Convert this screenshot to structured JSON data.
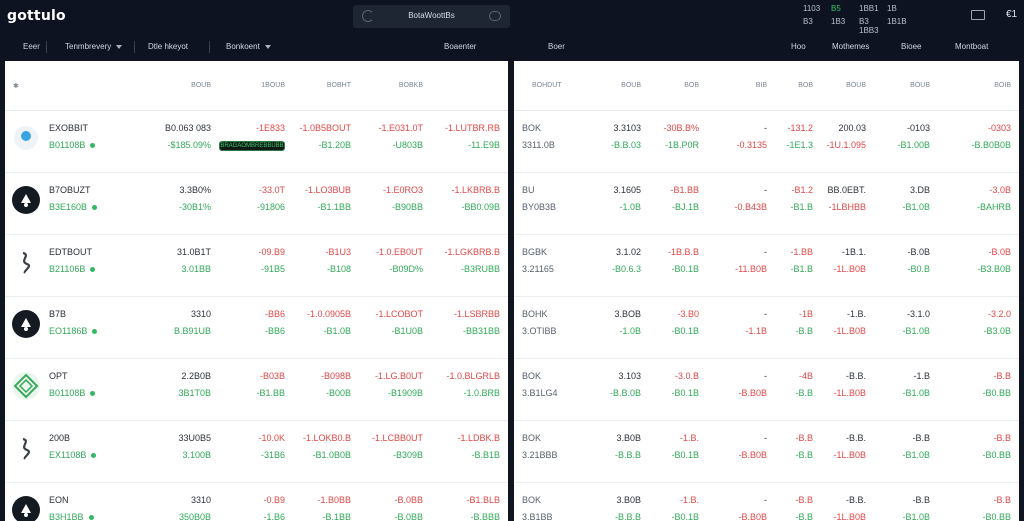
{
  "app": {
    "logo": "gottulo"
  },
  "search": {
    "label": "BotaWoottBs"
  },
  "top_stats": [
    [
      "1103",
      "B5",
      "1BB1",
      "1B",
      ""
    ],
    [
      "B3",
      "1B3",
      "B3 1BB3",
      "1B1B",
      ""
    ]
  ],
  "currency": "€1",
  "nav": {
    "left": [
      "Eeer",
      "Tenmbrevery",
      "Dtle hkeyot",
      "Bonkoent"
    ],
    "center": "Boaenter",
    "right_main": "Boer",
    "right": [
      "Hoo",
      "Mothemes",
      "Bioee",
      "Montboat"
    ]
  },
  "left_table": {
    "header_icon": "✱",
    "headers": [
      "BOUB",
      "1BOUB",
      "BOBHT",
      "BOBKB"
    ],
    "badge": "BRAGAOMBREBBUBB",
    "rows": [
      {
        "icon": "coin-light",
        "name": "EXOBBIT",
        "sub": "B01108B",
        "c1": [
          "B0.063 083",
          "-$185.09%"
        ],
        "c2": [
          "-1E833",
          ""
        ],
        "c3": [
          "-1.0B5BOUT",
          "-B1.20B"
        ],
        "c4": [
          "-1.E031.0T",
          "-U803B"
        ],
        "c5": [
          "-1.LUTBR.RB",
          "-11.E9B"
        ]
      },
      {
        "icon": "coin-dark",
        "name": "B7OBUZT",
        "sub": "B3E160B",
        "c1": [
          "3.3B0%",
          "-30B1%"
        ],
        "c2": [
          "-33.0T",
          "-91806"
        ],
        "c3": [
          "-1.LO3BUB",
          "-B1.1BB"
        ],
        "c4": [
          "-1.E0RO3",
          "-B90BB"
        ],
        "c5": [
          "-1.LKBRB.B",
          "-BB0.09B"
        ]
      },
      {
        "icon": "coin-snake",
        "name": "EDTBOUT",
        "sub": "B21106B",
        "c1": [
          "31.0B1T",
          "3.01BB"
        ],
        "c2": [
          "-09.B9",
          "-91B5"
        ],
        "c3": [
          "-B1U3",
          "-B108"
        ],
        "c4": [
          "-1.0.EB0UT",
          "-B09D%"
        ],
        "c5": [
          "-1.LGKBRB.B",
          "-B3RUBB"
        ]
      },
      {
        "icon": "coin-dark",
        "name": "B7B",
        "sub": "EO1186B",
        "c1": [
          "3310",
          "B.B91UB"
        ],
        "c2": [
          "-BB6",
          "-BB6"
        ],
        "c3": [
          "-1.0.0905B",
          "-B1.0B"
        ],
        "c4": [
          "-1.LCOBOT",
          "-B1U0B"
        ],
        "c5": [
          "-1.LSBRBB",
          "-BB31BB"
        ]
      },
      {
        "icon": "coin-green",
        "name": "OPT",
        "sub": "B01108B",
        "c1": [
          "2.2B0B",
          "3B1T0B"
        ],
        "c2": [
          "-B03B",
          "-B1.BB"
        ],
        "c3": [
          "-B098B",
          "-B00B"
        ],
        "c4": [
          "-1.LG.B0UT",
          "-B1909B"
        ],
        "c5": [
          "-1.0.BLGRLB",
          "-1.0.BRB"
        ]
      },
      {
        "icon": "coin-snake",
        "name": "200B",
        "sub": "EX1108B",
        "c1": [
          "33U0B5",
          "3.100B"
        ],
        "c2": [
          "-10.0K",
          "-31B6"
        ],
        "c3": [
          "-1.LOKB0.B",
          "-B1.0B0B"
        ],
        "c4": [
          "-1.LCBB0UT",
          "-B309B"
        ],
        "c5": [
          "-1.LDBK.B",
          "-B.B1B"
        ]
      },
      {
        "icon": "coin-dark",
        "name": "EON",
        "sub": "B3H1BB",
        "c1": [
          "3310",
          "350B0B"
        ],
        "c2": [
          "-0.B9",
          "-1.B6"
        ],
        "c3": [
          "-1.B0BB",
          "-B.1BB"
        ],
        "c4": [
          "-B.0BB",
          "-B.0BB"
        ],
        "c5": [
          "-B1.BLB",
          "-B.BBB"
        ]
      }
    ]
  },
  "right_table": {
    "headers": [
      "BOHDUT",
      "BOUB",
      "BOB",
      "BIB",
      "BOB",
      "BOUB",
      "BOUB",
      "BOIB"
    ],
    "rows": [
      {
        "name": "BOK",
        "sub": "3311.0B",
        "c1": [
          "3.3103",
          "-B.B.03"
        ],
        "c2": [
          "-30B.B%",
          "-1B.P0R"
        ],
        "c3": [
          "-",
          "-0.3135"
        ],
        "c4": [
          "-131.2",
          "-1E1.3"
        ],
        "c5": [
          "200.03",
          "-1U.1.095"
        ],
        "c6": [
          "-0103",
          "-B1.00B"
        ],
        "c7": [
          "-0303",
          "-B.B0B0B"
        ]
      },
      {
        "name": "BU",
        "sub": "BY0B3B",
        "c1": [
          "3.1605",
          "-1.0B"
        ],
        "c2": [
          "-B1.BB",
          "-BJ.1B"
        ],
        "c3": [
          "-",
          "-0.B43B"
        ],
        "c4": [
          "-B1.2",
          "-B1.B"
        ],
        "c5": [
          "BB.0EBT.",
          "-1LBHBB"
        ],
        "c6": [
          "3.DB",
          "-B1.0B"
        ],
        "c7": [
          "-3.0B",
          "-BAHRB"
        ]
      },
      {
        "name": "BGBK",
        "sub": "3.21165",
        "c1": [
          "3.1.02",
          "-B0.6.3"
        ],
        "c2": [
          "-1B.B.B",
          "-B0.1B"
        ],
        "c3": [
          "-",
          "-11.B0B"
        ],
        "c4": [
          "-1.BB",
          "-B1.B"
        ],
        "c5": [
          "-1B.1.",
          "-1L.B0B"
        ],
        "c6": [
          "-B.0B",
          "-B0.B"
        ],
        "c7": [
          "-B.0B",
          "-B3.B0B"
        ]
      },
      {
        "name": "BOHK",
        "sub": "3.OTIBB",
        "c1": [
          "3.BOB",
          "-1.0B"
        ],
        "c2": [
          "-3.B0",
          "-B0.1B"
        ],
        "c3": [
          "-",
          "-1.1B"
        ],
        "c4": [
          "-1B",
          "-B.B"
        ],
        "c5": [
          "-1.B.",
          "-1L.B0B"
        ],
        "c6": [
          "-3.1.0",
          "-B1.0B"
        ],
        "c7": [
          "-3.2.0",
          "-B3.0B"
        ]
      },
      {
        "name": "BOK",
        "sub": "3.B1LG4",
        "c1": [
          "3.103",
          "-B.B.0B"
        ],
        "c2": [
          "-3.0.B",
          "-B0.1B"
        ],
        "c3": [
          "-",
          "-B.B0B"
        ],
        "c4": [
          "-4B",
          "-B.B"
        ],
        "c5": [
          "-B.B.",
          "-1L.B0B"
        ],
        "c6": [
          "-1.B",
          "-B1.0B"
        ],
        "c7": [
          "-B.B",
          "-B0.BB"
        ]
      },
      {
        "name": "BOK",
        "sub": "3.21BBB",
        "c1": [
          "3.B0B",
          "-B.B.B"
        ],
        "c2": [
          "-1.B.",
          "-B0.1B"
        ],
        "c3": [
          "-",
          "-B.B0B"
        ],
        "c4": [
          "-B.B",
          "-B.B"
        ],
        "c5": [
          "-B.B.",
          "-1L.B0B"
        ],
        "c6": [
          "-B.B",
          "-B1.0B"
        ],
        "c7": [
          "-B.B",
          "-B0.BB"
        ]
      },
      {
        "name": "BOK",
        "sub": "3.B1BB",
        "c1": [
          "3.B0B",
          "-B.B.B"
        ],
        "c2": [
          "-1.B.",
          "-B0.1B"
        ],
        "c3": [
          "-",
          "-B.B0B"
        ],
        "c4": [
          "-B.B",
          "-B.B"
        ],
        "c5": [
          "-B.B.",
          "-1L.B0B"
        ],
        "c6": [
          "-B.B",
          "-B1.0B"
        ],
        "c7": [
          "-B.B",
          "-B0.BB"
        ]
      }
    ]
  }
}
